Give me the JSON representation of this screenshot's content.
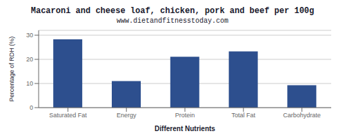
{
  "chart_data": {
    "type": "bar",
    "title": "Macaroni and cheese loaf, chicken, pork and beef per 100g",
    "subtitle": "www.dietandfitnesstoday.com",
    "xlabel": "Different Nutrients",
    "ylabel": "Percentage of RDH (%)",
    "categories": [
      "Saturated Fat",
      "Energy",
      "Protein",
      "Total Fat",
      "Carbohydrate"
    ],
    "values": [
      28.3,
      11.0,
      21.1,
      23.3,
      9.3
    ],
    "color": "#2d4f8e",
    "ylim": [
      0,
      32
    ],
    "yticks": [
      0,
      10,
      20,
      30
    ],
    "grid": true
  }
}
